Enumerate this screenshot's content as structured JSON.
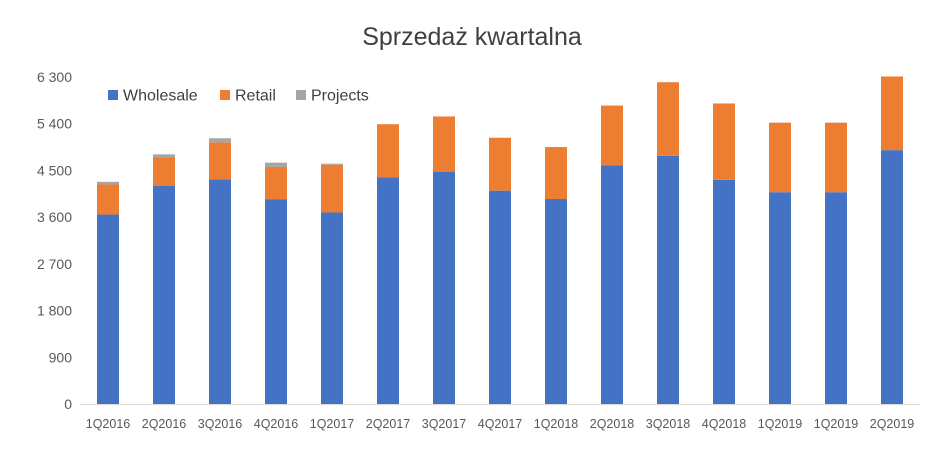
{
  "chart_data": {
    "type": "bar",
    "stacked": true,
    "title": "Sprzedaż kwartalna",
    "xlabel": "",
    "ylabel": "",
    "ylim": [
      0,
      6300
    ],
    "y_ticks": [
      0,
      900,
      1800,
      2700,
      3600,
      4500,
      5400,
      6300
    ],
    "y_tick_labels": [
      "0",
      "900",
      "1 800",
      "2 700",
      "3 600",
      "4 500",
      "5 400",
      "6 300"
    ],
    "grid": false,
    "legend_position": "top-left",
    "categories": [
      "1Q2016",
      "2Q2016",
      "3Q2016",
      "4Q2016",
      "1Q2017",
      "2Q2017",
      "3Q2017",
      "4Q2017",
      "1Q2018",
      "2Q2018",
      "3Q2018",
      "4Q2018",
      "1Q2019",
      "1Q2019",
      "2Q2019"
    ],
    "series": [
      {
        "name": "Wholesale",
        "color": "#4472C4",
        "values": [
          3650,
          4200,
          4330,
          3940,
          3690,
          4370,
          4470,
          4110,
          3950,
          4600,
          4780,
          4320,
          4080,
          4080,
          4890
        ]
      },
      {
        "name": "Retail",
        "color": "#ED7D31",
        "values": [
          580,
          550,
          710,
          630,
          920,
          1020,
          1070,
          1020,
          1000,
          1150,
          1420,
          1470,
          1340,
          1340,
          1420
        ]
      },
      {
        "name": "Projects",
        "color": "#A5A5A5",
        "values": [
          50,
          60,
          80,
          80,
          20,
          0,
          0,
          0,
          0,
          0,
          0,
          0,
          0,
          0,
          0
        ]
      }
    ]
  }
}
